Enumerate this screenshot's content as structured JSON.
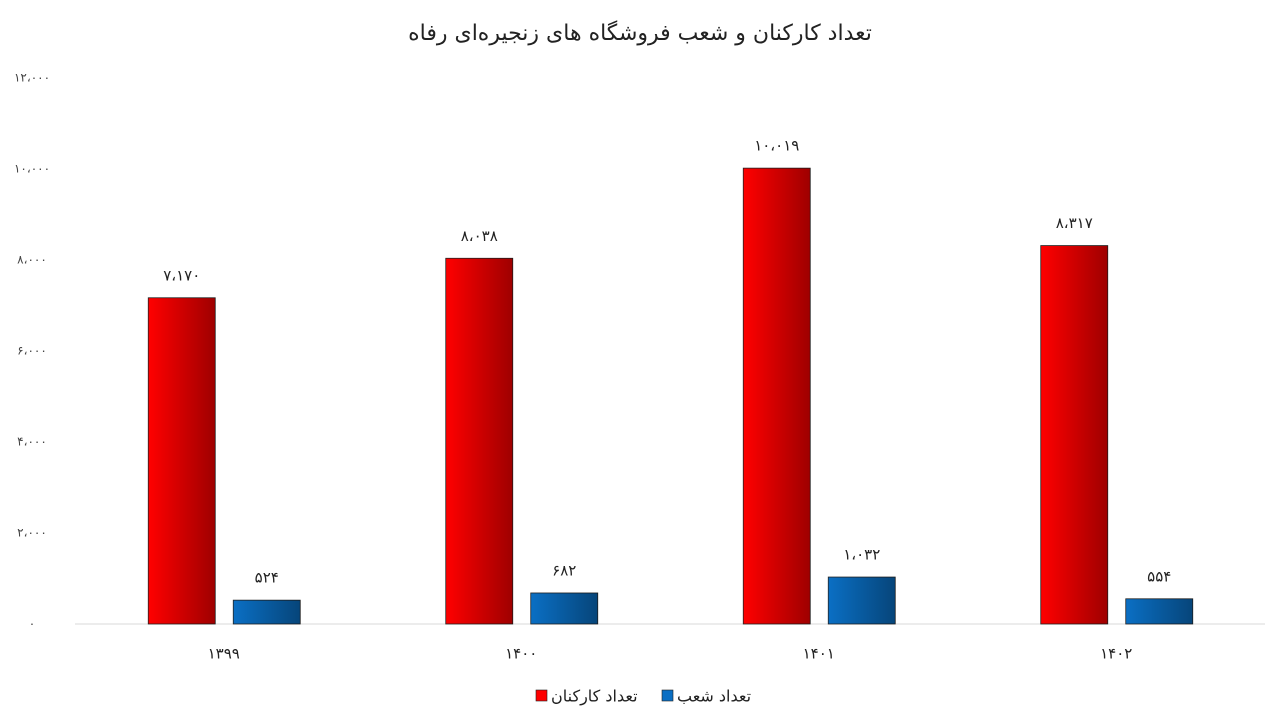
{
  "chart_data": {
    "type": "bar",
    "title": "تعداد کارکنان و شعب فروشگاه های زنجیره‌ای رفاه",
    "categories": [
      "۱۳۹۹",
      "۱۴۰۰",
      "۱۴۰۱",
      "۱۴۰۲"
    ],
    "series": [
      {
        "name": "تعداد کارکنان",
        "color": "#ff0000",
        "values": [
          7170,
          8038,
          10019,
          8317
        ],
        "value_labels": [
          "۷،۱۷۰",
          "۸،۰۳۸",
          "۱۰،۰۱۹",
          "۸،۳۱۷"
        ]
      },
      {
        "name": "تعداد شعب",
        "color": "#0a6fc4",
        "values": [
          524,
          682,
          1032,
          554
        ],
        "value_labels": [
          "۵۲۴",
          "۶۸۲",
          "۱،۰۳۲",
          "۵۵۴"
        ]
      }
    ],
    "ylim": [
      0,
      12000
    ],
    "yticks": [
      {
        "value": 0,
        "label": "۰"
      },
      {
        "value": 2000,
        "label": "۲،۰۰۰"
      },
      {
        "value": 4000,
        "label": "۴،۰۰۰"
      },
      {
        "value": 6000,
        "label": "۶،۰۰۰"
      },
      {
        "value": 8000,
        "label": "۸،۰۰۰"
      },
      {
        "value": 10000,
        "label": "۱۰،۰۰۰"
      },
      {
        "value": 12000,
        "label": "۱۲،۰۰۰"
      }
    ],
    "grid": false,
    "legend": "bottom"
  }
}
